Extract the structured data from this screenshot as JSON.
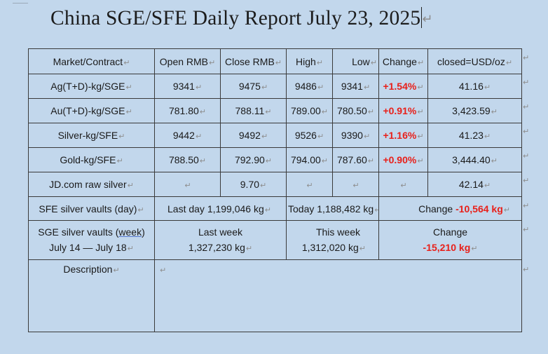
{
  "title": "China SGE/SFE Daily Report July 23, 2025",
  "header": [
    "Market/Contract",
    "Open RMB",
    "Close RMB",
    "High",
    "Low",
    "Change",
    "closed=USD/oz"
  ],
  "rows": [
    {
      "market": "Ag(T+D)-kg/SGE",
      "open": "9341",
      "close": "9475",
      "high": "9486",
      "low": "9341",
      "change": "+1.54%",
      "usd": "41.16"
    },
    {
      "market": "Au(T+D)-kg/SGE",
      "open": "781.80",
      "close": "788.11",
      "high": "789.00",
      "low": "780.50",
      "change": "+0.91%",
      "usd": "3,423.59"
    },
    {
      "market": "Silver-kg/SFE",
      "open": "9442",
      "close": "9492",
      "high": "9526",
      "low": "9390",
      "change": "+1.16%",
      "usd": "41.23"
    },
    {
      "market": "Gold-kg/SFE",
      "open": "788.50",
      "close": "792.90",
      "high": "794.00",
      "low": "787.60",
      "change": "+0.90%",
      "usd": "3,444.40"
    },
    {
      "market": "JD.com raw silver",
      "open": "",
      "close": "9.70",
      "high": "",
      "low": "",
      "change": "",
      "usd": "42.14"
    }
  ],
  "vaults_day": {
    "label": "SFE silver vaults (day)",
    "last_day": "Last day 1,199,046 kg",
    "today": "Today 1,188,482 kg",
    "change_label": "Change",
    "change_value": "-10,564 kg"
  },
  "vaults_week": {
    "label_prefix": "SGE silver vaults (",
    "label_word": "week",
    "label_suffix": ")",
    "dates": "July 14 — July 18",
    "last_week_label": "Last week",
    "last_week_value": "1,327,230 kg",
    "this_week_label": "This week",
    "this_week_value": "1,312,020 kg",
    "change_label": "Change",
    "change_value": "-15,210 kg"
  },
  "description": {
    "label": "Description",
    "text": ""
  },
  "colors": {
    "background": "#c2d7ec",
    "change_red": "#e8201a",
    "border": "#3a3a3a"
  },
  "paragraph_mark": "↵"
}
